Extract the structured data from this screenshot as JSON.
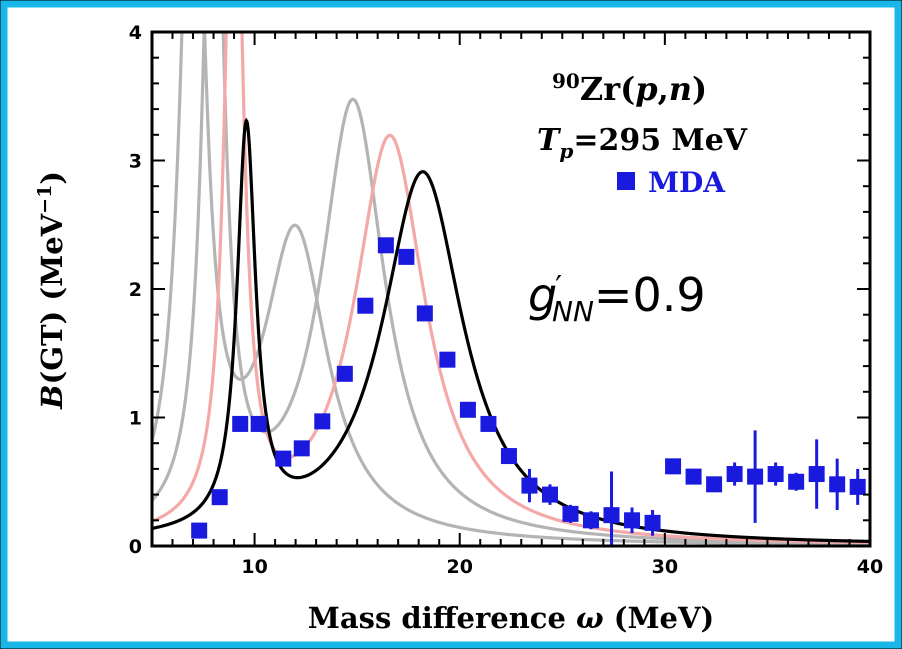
{
  "chart_data": {
    "type": "line",
    "xlabel_pre": "Mass difference ",
    "xlabel_sym": "ω",
    "xlabel_post": " (MeV)",
    "ylabel_sym": "B",
    "ylabel_mid": "(GT)  (MeV",
    "ylabel_sup": "−1",
    "ylabel_close": ")",
    "xlim": [
      5,
      40
    ],
    "ylim": [
      0,
      4
    ],
    "xticks": [
      10,
      20,
      30,
      40
    ],
    "yticks": [
      0,
      1,
      2,
      3,
      4
    ],
    "annotations": {
      "reaction_sup": "90",
      "reaction_el": "Zr(",
      "reaction_p": "p",
      "reaction_comma": ",",
      "reaction_n": "n",
      "reaction_close": ")",
      "tp_sym": "T",
      "tp_sub": "p",
      "tp_val": "=295 MeV",
      "legend_label": "MDA",
      "g_sym": "g",
      "g_prime": "′",
      "g_sub": "NN",
      "g_val": "=0.9"
    },
    "series": [
      {
        "label": "MDA",
        "color": "#1a1adf",
        "marker": "square",
        "points": [
          {
            "x": 7.3,
            "y": 0.12,
            "err": 0.04
          },
          {
            "x": 8.3,
            "y": 0.38,
            "err": 0.04
          },
          {
            "x": 9.3,
            "y": 0.95,
            "err": 0.05
          },
          {
            "x": 10.2,
            "y": 0.95,
            "err": 0.05
          },
          {
            "x": 11.4,
            "y": 0.68,
            "err": 0.05
          },
          {
            "x": 12.3,
            "y": 0.76,
            "err": 0.05
          },
          {
            "x": 13.3,
            "y": 0.97,
            "err": 0.05
          },
          {
            "x": 14.4,
            "y": 1.34,
            "err": 0.05
          },
          {
            "x": 15.4,
            "y": 1.87,
            "err": 0.05
          },
          {
            "x": 16.4,
            "y": 2.34,
            "err": 0.05
          },
          {
            "x": 17.4,
            "y": 2.25,
            "err": 0.05
          },
          {
            "x": 18.3,
            "y": 1.81,
            "err": 0.05
          },
          {
            "x": 19.4,
            "y": 1.45,
            "err": 0.05
          },
          {
            "x": 20.4,
            "y": 1.06,
            "err": 0.05
          },
          {
            "x": 21.4,
            "y": 0.95,
            "err": 0.05
          },
          {
            "x": 22.4,
            "y": 0.7,
            "err": 0.06
          },
          {
            "x": 23.4,
            "y": 0.47,
            "err": 0.13
          },
          {
            "x": 24.4,
            "y": 0.4,
            "err": 0.08
          },
          {
            "x": 25.4,
            "y": 0.25,
            "err": 0.07
          },
          {
            "x": 26.4,
            "y": 0.2,
            "err": 0.07
          },
          {
            "x": 27.4,
            "y": 0.24,
            "err": 0.34
          },
          {
            "x": 28.4,
            "y": 0.2,
            "err": 0.1
          },
          {
            "x": 29.4,
            "y": 0.18,
            "err": 0.1
          },
          {
            "x": 30.4,
            "y": 0.62,
            "err": 0.06
          },
          {
            "x": 31.4,
            "y": 0.54,
            "err": 0.06
          },
          {
            "x": 32.4,
            "y": 0.48,
            "err": 0.06
          },
          {
            "x": 33.4,
            "y": 0.56,
            "err": 0.09
          },
          {
            "x": 34.4,
            "y": 0.54,
            "err": 0.36
          },
          {
            "x": 35.4,
            "y": 0.56,
            "err": 0.09
          },
          {
            "x": 36.4,
            "y": 0.5,
            "err": 0.07
          },
          {
            "x": 37.4,
            "y": 0.56,
            "err": 0.27
          },
          {
            "x": 38.4,
            "y": 0.48,
            "err": 0.2
          },
          {
            "x": 39.4,
            "y": 0.46,
            "err": 0.14
          }
        ]
      },
      {
        "label": "black",
        "color": "#000000",
        "peaks": [
          {
            "x0": 9.6,
            "h": 3.1,
            "g": 0.55
          },
          {
            "x0": 18.2,
            "h": 2.9,
            "g": 2.4
          }
        ]
      },
      {
        "label": "pink",
        "color": "#f4a9a8",
        "peaks": [
          {
            "x0": 9.0,
            "h": 6.0,
            "g": 0.5
          },
          {
            "x0": 16.6,
            "h": 3.17,
            "g": 2.1
          }
        ]
      },
      {
        "label": "gray1",
        "color": "#b4b4b4",
        "peaks": [
          {
            "x0": 8.0,
            "h": 6.0,
            "g": 0.6
          },
          {
            "x0": 14.8,
            "h": 3.43,
            "g": 1.9
          }
        ]
      },
      {
        "label": "gray2",
        "color": "#b4b4b4",
        "peaks": [
          {
            "x0": 7.0,
            "h": 6.0,
            "g": 0.7
          },
          {
            "x0": 12.0,
            "h": 2.38,
            "g": 1.9
          }
        ]
      }
    ]
  }
}
